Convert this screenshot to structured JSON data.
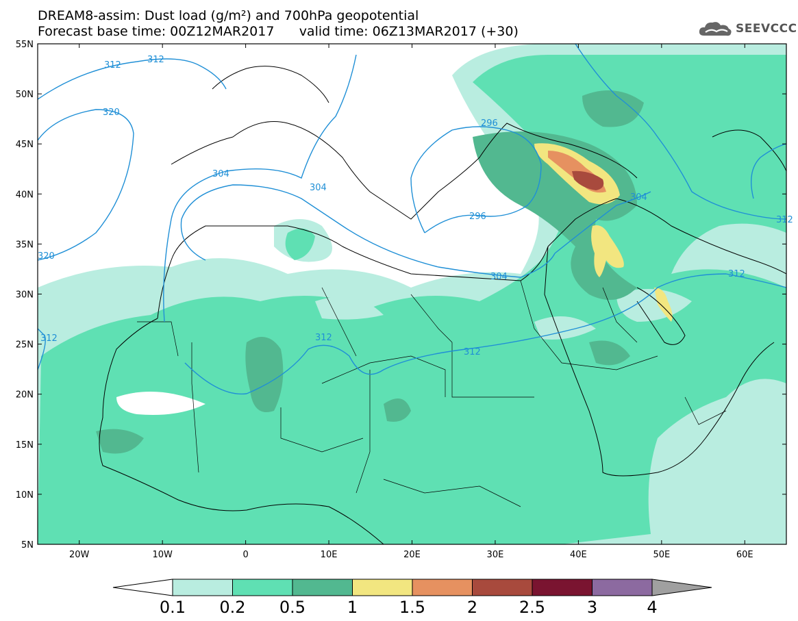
{
  "title": {
    "line1": "DREAM8-assim: Dust load (g/m²) and 700hPa geopotential",
    "line2": "Forecast base time: 00Z12MAR2017      valid time: 06Z13MAR2017 (+30)"
  },
  "logo": {
    "text": "SEEVCCC",
    "icon": "cloud-icon"
  },
  "map": {
    "lon_range": [
      -25,
      65
    ],
    "lat_range": [
      5,
      55
    ],
    "lat_ticks": [
      "55N",
      "50N",
      "45N",
      "40N",
      "35N",
      "30N",
      "25N",
      "20N",
      "15N",
      "10N",
      "5N"
    ],
    "lon_ticks": [
      "20W",
      "10W",
      "0",
      "10E",
      "20E",
      "30E",
      "40E",
      "50E",
      "60E"
    ]
  },
  "contour_labels": [
    "312",
    "312",
    "320",
    "304",
    "304",
    "296",
    "296",
    "304",
    "304",
    "320",
    "312",
    "312",
    "312",
    "312",
    "312"
  ],
  "colorbar": {
    "labels": [
      "0.1",
      "0.2",
      "0.5",
      "1",
      "1.5",
      "2",
      "2.5",
      "3",
      "4"
    ],
    "colors": [
      "#b9ede0",
      "#5fe0b3",
      "#52b890",
      "#f2e680",
      "#e69160",
      "#a84a3d",
      "#7a1430",
      "#8c6aa0",
      "#a0a0a0"
    ]
  }
}
